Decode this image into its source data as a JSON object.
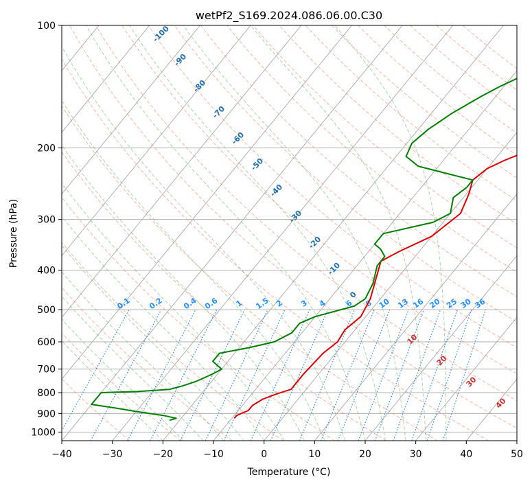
{
  "chart_data": {
    "type": "line",
    "title": "wetPf2_S169.2024.086.06.00.C30",
    "xlabel": "Temperature (°C)",
    "ylabel": "Pressure (hPa)",
    "xlim": [
      -40,
      50
    ],
    "ylim": [
      1050,
      100
    ],
    "y_scale": "log",
    "x_ticks": [
      -40,
      -30,
      -20,
      -10,
      0,
      10,
      20,
      30,
      40,
      50
    ],
    "x_tick_labels": [
      "−40",
      "−30",
      "−20",
      "−10",
      "0",
      "10",
      "20",
      "30",
      "40",
      "50"
    ],
    "y_ticks": [
      100,
      200,
      300,
      400,
      500,
      600,
      700,
      800,
      900,
      1000
    ],
    "y_tick_labels": [
      "100",
      "200",
      "300",
      "400",
      "500",
      "600",
      "700",
      "800",
      "900",
      "1000"
    ],
    "grid": true,
    "colors": {
      "temperature": "#e00000",
      "dewpoint": "#008000",
      "dry_adiabat": "#fa8060",
      "moist_adiabat": "#60b060",
      "mixing_ratio": "#1e88e5",
      "isotherm": "#888888",
      "moist_label": "#1f6fb0",
      "mixing_label": "#1e90ff",
      "dry_label": "#d03030"
    },
    "series": [
      {
        "id": "temperature",
        "values": [
          [
            -9.5,
            925
          ],
          [
            -9.5,
            910
          ],
          [
            -8,
            885
          ],
          [
            -8,
            860
          ],
          [
            -7,
            830
          ],
          [
            -5,
            805
          ],
          [
            -3,
            785
          ],
          [
            -3,
            720
          ],
          [
            -2.5,
            640
          ],
          [
            -1.5,
            600
          ],
          [
            -2,
            560
          ],
          [
            -1,
            520
          ],
          [
            -2,
            470
          ],
          [
            -6,
            380
          ],
          [
            -4,
            360
          ],
          [
            0,
            330
          ],
          [
            2,
            290
          ],
          [
            0.5,
            260
          ],
          [
            -1,
            240
          ],
          [
            0,
            225
          ],
          [
            2,
            215
          ],
          [
            4,
            208
          ],
          [
            8,
            197
          ],
          [
            10,
            185
          ],
          [
            13,
            170
          ],
          [
            15,
            160
          ],
          [
            18,
            148
          ],
          [
            20,
            140
          ],
          [
            22,
            133
          ],
          [
            24,
            125
          ],
          [
            26,
            118
          ],
          [
            28,
            112
          ],
          [
            30,
            106
          ],
          [
            30.5,
            103
          ],
          [
            31,
            100
          ]
        ]
      },
      {
        "id": "dewpoint",
        "values": [
          [
            -22,
            935
          ],
          [
            -21,
            925
          ],
          [
            -24,
            910
          ],
          [
            -30,
            890
          ],
          [
            -34,
            875
          ],
          [
            -40,
            855
          ],
          [
            -40,
            800
          ],
          [
            -33,
            795
          ],
          [
            -27,
            785
          ],
          [
            -25,
            770
          ],
          [
            -23,
            750
          ],
          [
            -21,
            720
          ],
          [
            -20,
            700
          ],
          [
            -23,
            670
          ],
          [
            -23,
            640
          ],
          [
            -18,
            620
          ],
          [
            -14,
            600
          ],
          [
            -12,
            570
          ],
          [
            -12,
            540
          ],
          [
            -10,
            520
          ],
          [
            -4,
            490
          ],
          [
            -3,
            470
          ],
          [
            -4,
            430
          ],
          [
            -6,
            390
          ],
          [
            -6,
            370
          ],
          [
            -8,
            355
          ],
          [
            -10,
            345
          ],
          [
            -10,
            325
          ],
          [
            -2,
            305
          ],
          [
            0,
            290
          ],
          [
            -2,
            265
          ],
          [
            -1,
            250
          ],
          [
            -1,
            240
          ],
          [
            -14,
            222
          ],
          [
            -18,
            210
          ],
          [
            -19,
            195
          ],
          [
            -18,
            180
          ],
          [
            -16,
            165
          ],
          [
            -13,
            150
          ],
          [
            -11,
            142
          ],
          [
            -7,
            130
          ],
          [
            -3,
            120
          ],
          [
            3,
            108
          ],
          [
            6,
            102
          ],
          [
            7,
            100
          ]
        ]
      }
    ],
    "mixing_ratio_labels": [
      "0.1",
      "0.2",
      "0.4",
      "0.6",
      "1",
      "1.5",
      "2",
      "3",
      "4",
      "6",
      "8",
      "10",
      "13",
      "16",
      "20",
      "25",
      "30",
      "36"
    ],
    "moist_adiabat_labels": [
      "-100",
      "-90",
      "-80",
      "-70",
      "-60",
      "-50",
      "-40",
      "-30",
      "-20",
      "-10",
      "0"
    ],
    "dry_adiabat_labels": [
      "10",
      "20",
      "30",
      "40"
    ]
  }
}
